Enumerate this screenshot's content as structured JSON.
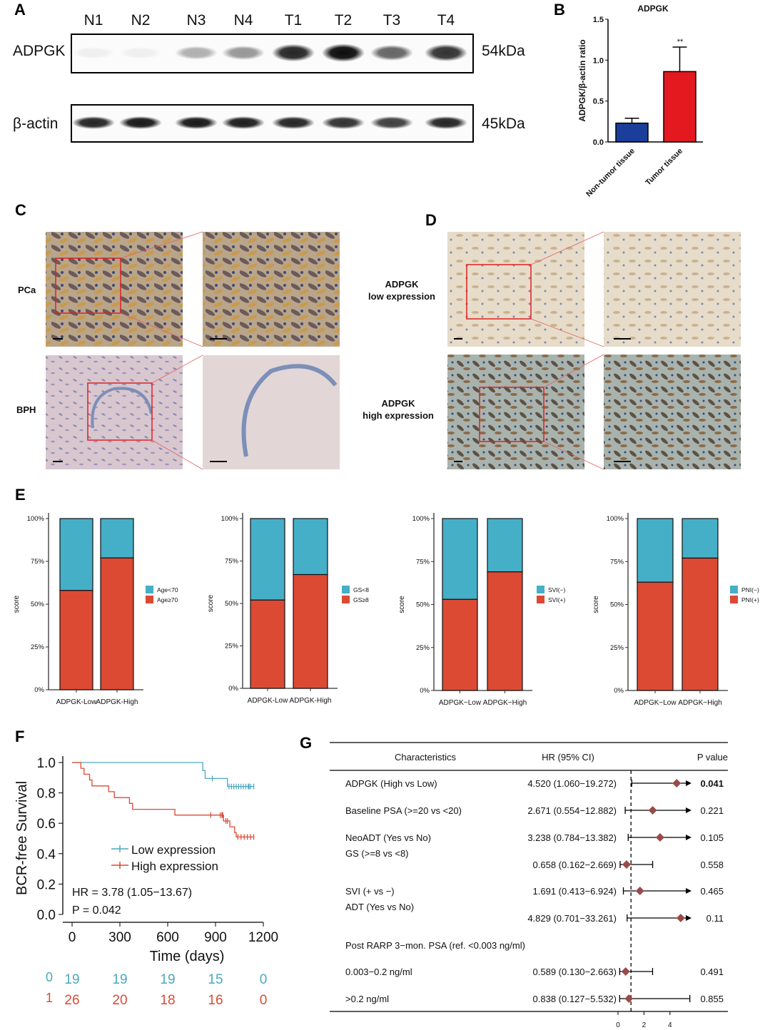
{
  "panel_labels": {
    "a": "A",
    "b": "B",
    "c": "C",
    "d": "D",
    "e": "E",
    "f": "F",
    "g": "G"
  },
  "panel_a": {
    "lanes": [
      "N1",
      "N2",
      "N3",
      "N4",
      "T1",
      "T2",
      "T3",
      "T4"
    ],
    "rows": [
      {
        "label": "ADPGK",
        "size": "54kDa",
        "intensity": [
          0.05,
          0.05,
          0.3,
          0.4,
          0.85,
          0.95,
          0.6,
          0.8
        ]
      },
      {
        "label": "β-actin",
        "size": "45kDa",
        "intensity": [
          0.85,
          0.9,
          0.9,
          0.88,
          0.85,
          0.8,
          0.75,
          0.85
        ]
      }
    ]
  },
  "chart_data": [
    {
      "id": "B",
      "type": "bar",
      "title": "ADPGK",
      "ylabel": "ADPGK/β-actin ratio",
      "categories": [
        "Non-tumor tissue",
        "Tumor tissue"
      ],
      "values": [
        0.23,
        0.86
      ],
      "error": [
        0.06,
        0.3
      ],
      "colors": [
        "#1a3e9a",
        "#e3191f"
      ],
      "ylim": [
        0,
        1.5
      ],
      "yticks": [
        "0.0",
        "0.5",
        "1.0",
        "1.5"
      ],
      "annotation": "**"
    },
    {
      "id": "E1",
      "type": "stacked-bar",
      "ylabel": "score",
      "categories": [
        "ADPGK-Low",
        "ADPGK-High"
      ],
      "series": [
        {
          "name": "Age<70",
          "values": [
            42,
            23
          ],
          "color": "#45afc8"
        },
        {
          "name": "Age≥70",
          "values": [
            58,
            77
          ],
          "color": "#dc4a34"
        }
      ],
      "yticks": [
        "0%",
        "25%",
        "50%",
        "75%",
        "100%"
      ]
    },
    {
      "id": "E2",
      "type": "stacked-bar",
      "ylabel": "score",
      "categories": [
        "ADPGK-Low",
        "ADPGK-High"
      ],
      "series": [
        {
          "name": "GS<8",
          "values": [
            48,
            33
          ],
          "color": "#45afc8"
        },
        {
          "name": "GS≥8",
          "values": [
            52,
            67
          ],
          "color": "#dc4a34"
        }
      ],
      "yticks": [
        "0%",
        "25%",
        "50%",
        "75%",
        "100%"
      ]
    },
    {
      "id": "E3",
      "type": "stacked-bar",
      "ylabel": "score",
      "categories": [
        "ADPGK−Low",
        "ADPGK−High"
      ],
      "series": [
        {
          "name": "SVI(−)",
          "values": [
            47,
            31
          ],
          "color": "#45afc8"
        },
        {
          "name": "SVI(+)",
          "values": [
            53,
            69
          ],
          "color": "#dc4a34"
        }
      ],
      "yticks": [
        "0%",
        "25%",
        "50%",
        "75%",
        "100%"
      ]
    },
    {
      "id": "E4",
      "type": "stacked-bar",
      "ylabel": "score",
      "categories": [
        "ADPGK−Low",
        "ADPGK−High"
      ],
      "series": [
        {
          "name": "PNI(−)",
          "values": [
            37,
            23
          ],
          "color": "#45afc8"
        },
        {
          "name": "PNI(+)",
          "values": [
            63,
            77
          ],
          "color": "#dc4a34"
        }
      ],
      "yticks": [
        "0%",
        "25%",
        "50%",
        "75%",
        "100%"
      ]
    },
    {
      "id": "F",
      "type": "line",
      "ylabel": "BCR-free Survival",
      "xlabel": "Time (days)",
      "xlim": [
        0,
        1200
      ],
      "ylim": [
        0,
        1
      ],
      "xticks": [
        "0",
        "300",
        "600",
        "900",
        "1200"
      ],
      "yticks": [
        "0.0",
        "0.2",
        "0.4",
        "0.6",
        "0.8",
        "1.0"
      ],
      "series": [
        {
          "name": "Low expression",
          "color": "#4aa8c0",
          "steps": [
            [
              0,
              1.0
            ],
            [
              820,
              0.947
            ],
            [
              835,
              0.895
            ],
            [
              975,
              0.842
            ],
            [
              1140,
              0.842
            ]
          ],
          "censored": [
            880,
            985,
            1000,
            1015,
            1030,
            1045,
            1060,
            1075,
            1090,
            1105,
            1110,
            1120,
            1140
          ]
        },
        {
          "name": "High expression",
          "color": "#dc4a34",
          "steps": [
            [
              0,
              1.0
            ],
            [
              55,
              0.962
            ],
            [
              75,
              0.923
            ],
            [
              110,
              0.885
            ],
            [
              125,
              0.846
            ],
            [
              230,
              0.808
            ],
            [
              265,
              0.769
            ],
            [
              360,
              0.731
            ],
            [
              380,
              0.692
            ],
            [
              645,
              0.654
            ],
            [
              950,
              0.615
            ],
            [
              990,
              0.577
            ],
            [
              1020,
              0.538
            ],
            [
              1030,
              0.51
            ],
            [
              1140,
              0.51
            ]
          ],
          "censored": [
            870,
            930,
            940,
            945,
            965,
            975,
            1040,
            1060,
            1080,
            1100,
            1120,
            1140
          ]
        }
      ],
      "annotations": [
        "HR = 3.78 (1.05−13.67)",
        "P = 0.042"
      ],
      "risk_table": [
        {
          "group": "0",
          "counts": [
            "19",
            "19",
            "19",
            "15",
            "0"
          ]
        },
        {
          "group": "1",
          "counts": [
            "26",
            "20",
            "18",
            "16",
            "0"
          ]
        }
      ]
    }
  ],
  "panel_c": {
    "rows": [
      "PCa",
      "BPH"
    ]
  },
  "panel_d": {
    "rows": [
      [
        "ADPGK",
        "low expression"
      ],
      [
        "ADPGK",
        "high expression"
      ]
    ]
  },
  "panel_g": {
    "headers": [
      "Characteristics",
      "HR (95% CI)",
      "P value"
    ],
    "axis_ticks": [
      "0",
      "2",
      "4"
    ],
    "rows": [
      {
        "label": "ADPGK (High vs Low)",
        "hr_text": "4.520 (1.060−19.272)",
        "p": "0.041",
        "hr": 4.52,
        "lo": 1.06,
        "hi": 19.272,
        "bold": true
      },
      {
        "label": "Baseline PSA (>=20 vs <20)",
        "hr_text": "2.671 (0.554−12.882)",
        "p": "0.221",
        "hr": 2.671,
        "lo": 0.554,
        "hi": 12.882
      },
      {
        "label": "NeoADT (Yes vs No)",
        "hr_text": "3.238 (0.784−13.382)",
        "p": "0.105",
        "hr": 3.238,
        "lo": 0.784,
        "hi": 13.382
      },
      {
        "label": "GS (>=8 vs <8)",
        "hr_text": "0.658 (0.162−2.669)",
        "p": "0.558",
        "hr": 0.658,
        "lo": 0.162,
        "hi": 2.669,
        "split": true
      },
      {
        "label": "SVI (+ vs −)",
        "hr_text": "1.691 (0.413−6.924)",
        "p": "0.465",
        "hr": 1.691,
        "lo": 0.413,
        "hi": 6.924
      },
      {
        "label": "ADT (Yes vs No)",
        "hr_text": "4.829 (0.701−33.261)",
        "p": "0.11",
        "hr": 4.829,
        "lo": 0.701,
        "hi": 33.261,
        "split": true
      },
      {
        "label": "Post RARP 3−mon. PSA (ref. <0.003 ng/ml)",
        "header": true
      },
      {
        "label": "0.003−0.2 ng/ml",
        "hr_text": "0.589 (0.130−2.663)",
        "p": "0.491",
        "hr": 0.589,
        "lo": 0.13,
        "hi": 2.663
      },
      {
        "label": ">0.2 ng/ml",
        "hr_text": "0.838 (0.127−5.532)",
        "p": "0.855",
        "hr": 0.838,
        "lo": 0.127,
        "hi": 5.532
      }
    ]
  }
}
